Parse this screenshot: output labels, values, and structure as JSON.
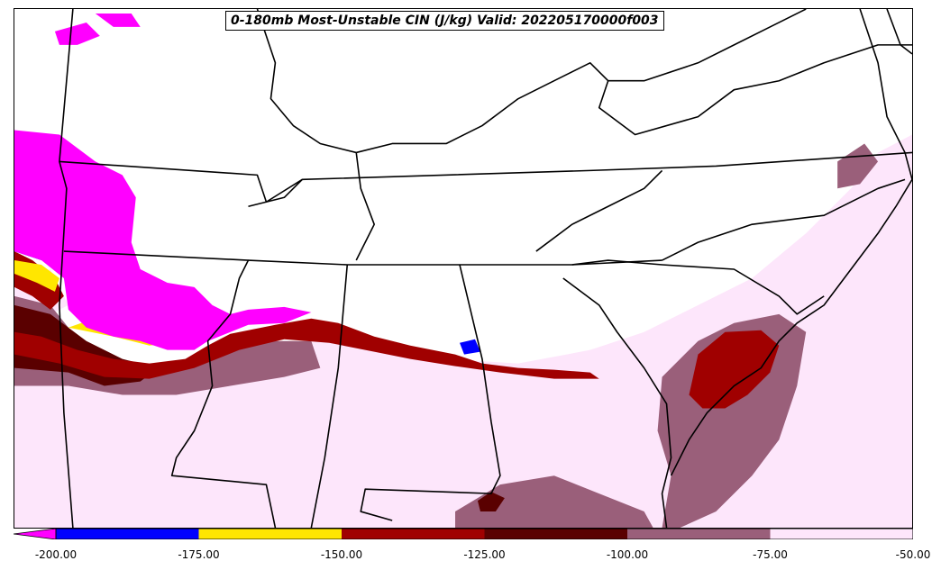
{
  "title": "0-180mb Most-Unstable CIN (J/kg) Valid: 202205170000f003",
  "colorbar": {
    "ticks": [
      "-200.00",
      "-175.00",
      "-150.00",
      "-125.00",
      "-100.00",
      "-75.00",
      "-50.00"
    ],
    "bins": [
      {
        "from": -200,
        "to": -175,
        "color": "#0000ff"
      },
      {
        "from": -175,
        "to": -150,
        "color": "#ffe600"
      },
      {
        "from": -150,
        "to": -125,
        "color": "#a00000"
      },
      {
        "from": -125,
        "to": -100,
        "color": "#5a0000"
      },
      {
        "from": -100,
        "to": -75,
        "color": "#9a5f7a"
      },
      {
        "from": -75,
        "to": -50,
        "color": "#fde6fb"
      }
    ],
    "under_color": "#ff00ff"
  },
  "map": {
    "colors": {
      "magenta": "#ff00ff",
      "blue": "#0000ff",
      "yellow": "#ffe600",
      "red": "#a00000",
      "darkred": "#5a0000",
      "mauve": "#9a5f7a",
      "pink": "#fde6fb",
      "border": "#000000"
    }
  }
}
